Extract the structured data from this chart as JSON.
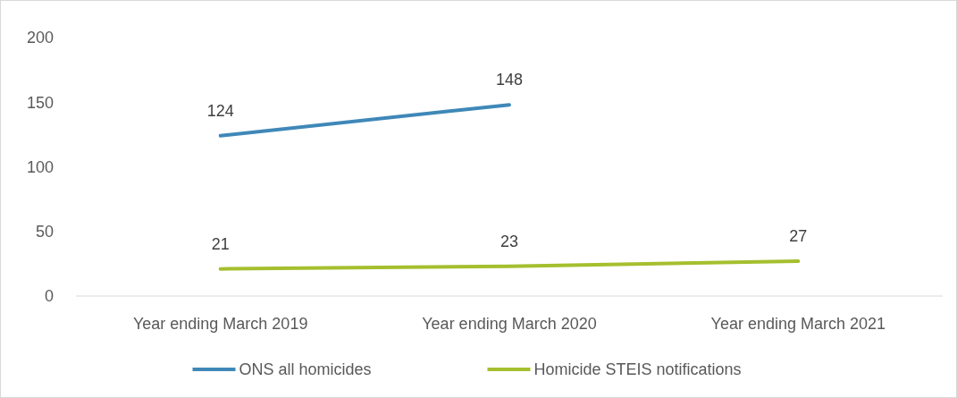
{
  "chart_data": {
    "type": "line",
    "categories": [
      "Year ending March 2019",
      "Year ending March 2020",
      "Year ending March 2021"
    ],
    "series": [
      {
        "name": "ONS all homicides",
        "color": "#3f88b8",
        "values": [
          124,
          148,
          null
        ]
      },
      {
        "name": "Homicide STEIS notifications",
        "color": "#a5bf2e",
        "values": [
          21,
          23,
          27
        ]
      }
    ],
    "ylim": [
      0,
      200
    ],
    "yticks": [
      0,
      50,
      100,
      150,
      200
    ],
    "grid": false,
    "legend": "bottom",
    "data_labels": true,
    "marker": "none",
    "line_style": "solid"
  }
}
